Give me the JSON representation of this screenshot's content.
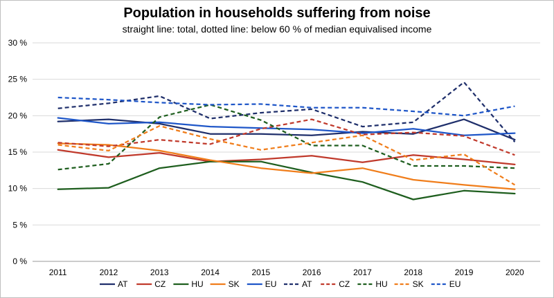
{
  "chart_data": {
    "type": "line",
    "title": "Population in households suffering from noise",
    "subtitle": "straight line: total, dotted line: below 60 % of median equivalised income",
    "xlabel": "",
    "ylabel": "",
    "categories": [
      "2011",
      "2012",
      "2013",
      "2014",
      "2015",
      "2016",
      "2017",
      "2018",
      "2019",
      "2020"
    ],
    "ylim": [
      0,
      30
    ],
    "yticks": [
      0,
      5,
      10,
      15,
      20,
      25,
      30
    ],
    "ytick_labels": [
      "0 %",
      "5 %",
      "10 %",
      "15 %",
      "20 %",
      "25 %",
      "30 %"
    ],
    "grid": true,
    "legend_position": "bottom",
    "series": [
      {
        "name": "AT",
        "style": "solid",
        "color": "#1f2f6b",
        "values": [
          19.2,
          19.5,
          18.9,
          17.5,
          17.5,
          17.3,
          17.8,
          17.5,
          19.5,
          16.7
        ]
      },
      {
        "name": "CZ",
        "style": "solid",
        "color": "#c0392b",
        "values": [
          15.3,
          14.3,
          14.9,
          13.7,
          14.0,
          14.5,
          13.6,
          14.6,
          14.0,
          13.3
        ]
      },
      {
        "name": "HU",
        "style": "solid",
        "color": "#1e5e1e",
        "values": [
          9.9,
          10.1,
          12.8,
          13.7,
          13.7,
          12.2,
          10.9,
          8.5,
          9.7,
          9.3
        ]
      },
      {
        "name": "SK",
        "style": "solid",
        "color": "#f07d1a",
        "values": [
          16.2,
          16.0,
          15.2,
          13.9,
          12.8,
          12.1,
          12.8,
          11.2,
          10.5,
          9.9
        ]
      },
      {
        "name": "EU",
        "style": "solid",
        "color": "#1e56c8",
        "values": [
          19.7,
          18.9,
          19.1,
          18.5,
          18.3,
          18.1,
          17.6,
          18.2,
          17.3,
          17.6
        ]
      },
      {
        "name": "AT",
        "style": "dashed",
        "color": "#1f2f6b",
        "values": [
          21.0,
          21.7,
          22.7,
          19.6,
          20.4,
          20.9,
          18.5,
          19.1,
          24.6,
          16.4
        ]
      },
      {
        "name": "CZ",
        "style": "dashed",
        "color": "#c0392b",
        "values": [
          16.3,
          15.8,
          16.7,
          16.1,
          18.2,
          19.5,
          17.4,
          17.7,
          17.2,
          14.6
        ]
      },
      {
        "name": "HU",
        "style": "dashed",
        "color": "#1e5e1e",
        "values": [
          12.6,
          13.4,
          19.8,
          21.5,
          19.4,
          15.9,
          15.9,
          13.1,
          13.1,
          12.8
        ]
      },
      {
        "name": "SK",
        "style": "dashed",
        "color": "#f07d1a",
        "values": [
          16.0,
          15.2,
          18.6,
          16.8,
          15.3,
          16.3,
          17.3,
          13.9,
          14.7,
          10.5
        ]
      },
      {
        "name": "EU",
        "style": "dashed",
        "color": "#1e56c8",
        "values": [
          22.5,
          22.2,
          21.8,
          21.5,
          21.6,
          21.1,
          21.1,
          20.6,
          20.0,
          21.3
        ]
      }
    ]
  }
}
